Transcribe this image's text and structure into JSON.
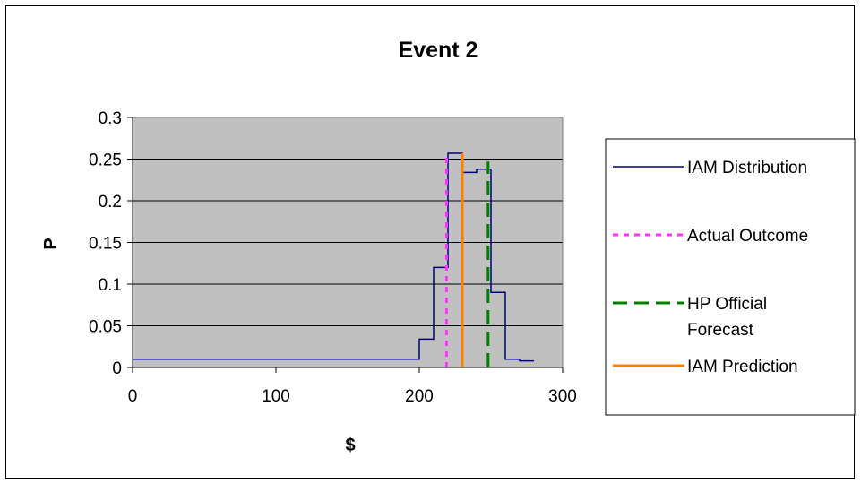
{
  "chart_data": {
    "type": "line",
    "title": "Event 2",
    "xlabel": "$",
    "ylabel": "P",
    "xlim": [
      0,
      300
    ],
    "ylim": [
      0,
      0.3
    ],
    "x_ticks": [
      0,
      100,
      200,
      300
    ],
    "x_tick_labels": [
      "0",
      "100",
      "200",
      "300"
    ],
    "y_ticks": [
      0,
      0.05,
      0.1,
      0.15,
      0.2,
      0.25,
      0.3
    ],
    "y_tick_labels": [
      "0",
      "0.05",
      "0.1",
      "0.15",
      "0.2",
      "0.25",
      "0.3"
    ],
    "grid": true,
    "plot_background": "#c0c0c0",
    "legend_position": "right",
    "series": [
      {
        "name": "IAM Distribution",
        "style": "solid",
        "color": "#000080",
        "x": [
          0,
          200,
          200,
          210,
          210,
          215,
          215,
          220,
          220,
          222,
          222,
          230,
          230,
          240,
          240,
          250,
          250,
          260,
          260,
          270,
          270,
          280
        ],
        "y": [
          0.01,
          0.01,
          0.034,
          0.034,
          0.12,
          0.12,
          0.12,
          0.12,
          0.257,
          0.257,
          0.257,
          0.257,
          0.234,
          0.234,
          0.238,
          0.238,
          0.09,
          0.09,
          0.01,
          0.01,
          0.008,
          0.008
        ]
      },
      {
        "name": "Actual Outcome",
        "style": "dotted",
        "color": "#ff33ff",
        "x": [
          219,
          219
        ],
        "y": [
          0,
          0.257
        ]
      },
      {
        "name": "HP Official Forecast",
        "style": "dashed",
        "color": "#008000",
        "x": [
          248,
          248
        ],
        "y": [
          0,
          0.247
        ]
      },
      {
        "name": "IAM Prediction",
        "style": "solid",
        "color": "#ff8000",
        "x": [
          230,
          230
        ],
        "y": [
          0,
          0.257
        ]
      }
    ],
    "legend_entries": [
      "IAM Distribution",
      "Actual Outcome",
      "HP Official Forecast",
      "IAM Prediction"
    ]
  }
}
